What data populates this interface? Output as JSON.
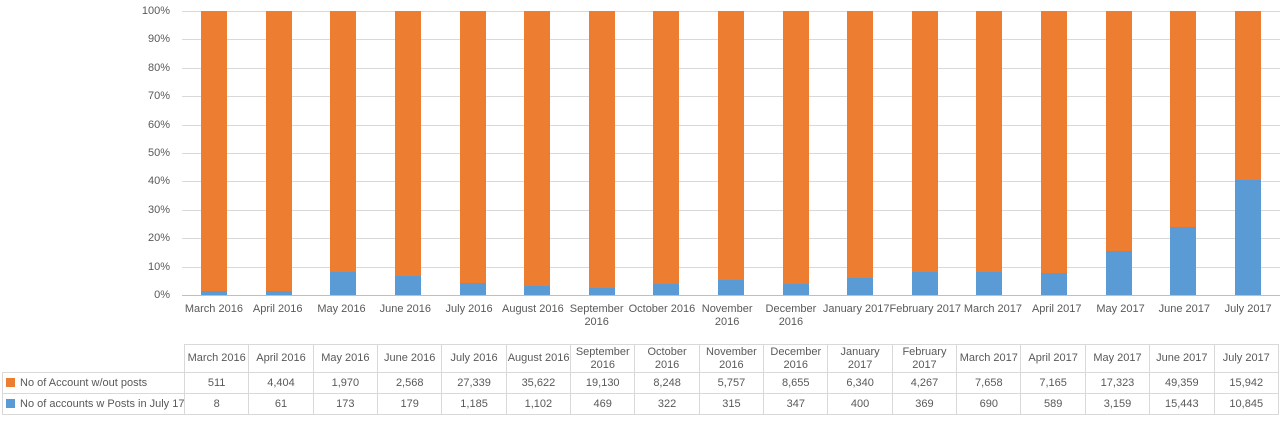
{
  "chart_data": {
    "type": "bar",
    "subtype": "100%-stacked-column",
    "title": "",
    "categories": [
      "March 2016",
      "April 2016",
      "May 2016",
      "June 2016",
      "July 2016",
      "August 2016",
      "September 2016",
      "October 2016",
      "November 2016",
      "December 2016",
      "January 2017",
      "February 2017",
      "March 2017",
      "April 2017",
      "May 2017",
      "June 2017",
      "July 2017"
    ],
    "series": [
      {
        "name": "No of Account w/out posts",
        "color": "#ED7D31",
        "values": [
          511,
          4404,
          1970,
          2568,
          27339,
          35622,
          19130,
          8248,
          5757,
          8655,
          6340,
          4267,
          7658,
          7165,
          17323,
          49359,
          15942
        ]
      },
      {
        "name": "No of accounts w Posts in July 17",
        "color": "#5B9BD5",
        "values": [
          8,
          61,
          173,
          179,
          1185,
          1102,
          469,
          322,
          315,
          347,
          400,
          369,
          690,
          589,
          3159,
          15443,
          10845
        ]
      }
    ],
    "stack_order_bottom_to_top": [
      "No of accounts w Posts in July 17",
      "No of Account w/out posts"
    ],
    "y_axis": {
      "ticks": [
        "0%",
        "10%",
        "20%",
        "30%",
        "40%",
        "50%",
        "60%",
        "70%",
        "80%",
        "90%",
        "100%"
      ],
      "range": [
        0,
        100
      ]
    },
    "x_axis": {
      "label_lines": [
        [
          "March 2016"
        ],
        [
          "April 2016"
        ],
        [
          "May 2016"
        ],
        [
          "June 2016"
        ],
        [
          "July 2016"
        ],
        [
          "August 2016"
        ],
        [
          "September",
          "2016"
        ],
        [
          "October 2016"
        ],
        [
          "November",
          "2016"
        ],
        [
          "December",
          "2016"
        ],
        [
          "January 2017"
        ],
        [
          "February 2017"
        ],
        [
          "March 2017"
        ],
        [
          "April 2017"
        ],
        [
          "May 2017"
        ],
        [
          "June 2017"
        ],
        [
          "July 2017"
        ]
      ]
    },
    "grid": true,
    "legend_position": "table-row-headers",
    "colors": {
      "gridline": "#D9D9D9",
      "axis_line": "#BFBFBF",
      "text": "#595959"
    }
  },
  "table": {
    "header_lines": [
      [
        "March 2016"
      ],
      [
        "April 2016"
      ],
      [
        "May 2016"
      ],
      [
        "June 2016"
      ],
      [
        "July 2016"
      ],
      [
        "August 2016"
      ],
      [
        "September",
        "2016"
      ],
      [
        "October",
        "2016"
      ],
      [
        "November",
        "2016"
      ],
      [
        "December",
        "2016"
      ],
      [
        "January",
        "2017"
      ],
      [
        "February",
        "2017"
      ],
      [
        "March 2017"
      ],
      [
        "April 2017"
      ],
      [
        "May 2017"
      ],
      [
        "June 2017"
      ],
      [
        "July 2017"
      ]
    ],
    "rows": [
      {
        "label": "No of Account w/out posts",
        "swatch_color": "#ED7D31",
        "values": [
          "511",
          "4,404",
          "1,970",
          "2,568",
          "27,339",
          "35,622",
          "19,130",
          "8,248",
          "5,757",
          "8,655",
          "6,340",
          "4,267",
          "7,658",
          "7,165",
          "17,323",
          "49,359",
          "15,942"
        ]
      },
      {
        "label": "No of accounts w Posts in July 17",
        "swatch_color": "#5B9BD5",
        "values": [
          "8",
          "61",
          "173",
          "179",
          "1,185",
          "1,102",
          "469",
          "322",
          "315",
          "347",
          "400",
          "369",
          "690",
          "589",
          "3,159",
          "15,443",
          "10,845"
        ]
      }
    ]
  }
}
